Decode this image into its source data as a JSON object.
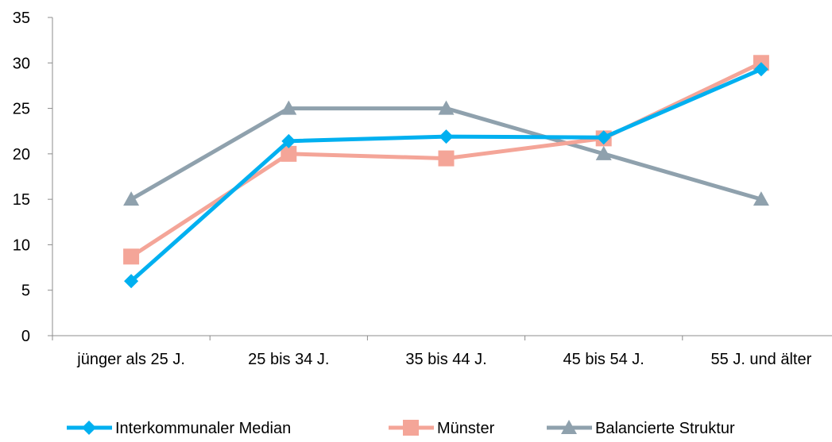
{
  "chart_data": {
    "type": "line",
    "title": "",
    "xlabel": "",
    "ylabel": "",
    "categories": [
      "jünger als 25 J.",
      "25 bis 34 J.",
      "35 bis 44 J.",
      "45 bis 54 J.",
      "55 J. und älter"
    ],
    "ylim": [
      0,
      35
    ],
    "yticks": [
      0,
      5,
      10,
      15,
      20,
      25,
      30,
      35
    ],
    "ytick_labels": [
      "0",
      "5",
      "10",
      "15",
      "20",
      "25",
      "30",
      "35"
    ],
    "grid": false,
    "legend_position": "bottom",
    "series": [
      {
        "name": "Interkommunaler Median",
        "color": "#00b0f0",
        "marker": "diamond",
        "values": [
          6.0,
          21.4,
          21.9,
          21.8,
          29.3
        ]
      },
      {
        "name": "Münster",
        "color": "#f4a598",
        "marker": "square",
        "values": [
          8.7,
          20.0,
          19.5,
          21.7,
          30.0
        ]
      },
      {
        "name": "Balancierte Struktur",
        "color": "#8fa1ad",
        "marker": "triangle",
        "values": [
          15.0,
          25.0,
          25.0,
          20.0,
          15.0
        ]
      }
    ]
  }
}
